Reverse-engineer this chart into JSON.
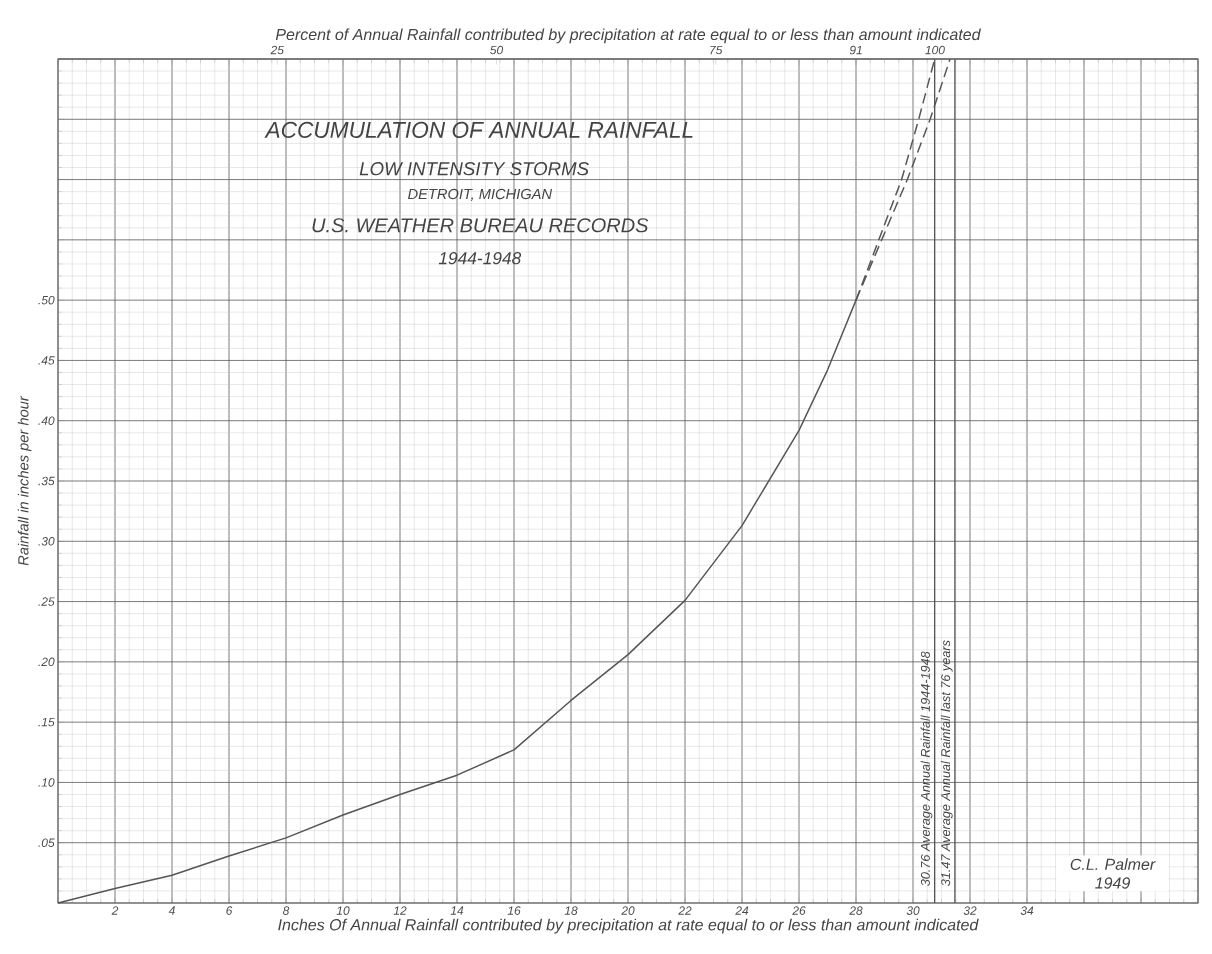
{
  "chart_data": {
    "type": "line",
    "title": "ACCUMULATION OF ANNUAL RAINFALL",
    "subtitle": "LOW INTENSITY STORMS",
    "xlabel": "Inches Of Annual Rainfall contributed by precipitation at rate equal to or less than amount indicated",
    "x2label": "Percent of Annual Rainfall contributed by precipitation at rate equal to or less than amount indicated",
    "ylabel": "Rainfall in inches per hour",
    "annotations": [
      "DETROIT, MICHIGAN",
      "U.S. WEATHER BUREAU RECORDS",
      "1944-1948",
      "C.L. Palmer 1949"
    ],
    "series": [
      {
        "color": "#555555",
        "line_style": "solid",
        "x": [
          0,
          2,
          4,
          6,
          8,
          10,
          12,
          14,
          16,
          18,
          20,
          22,
          24,
          26,
          27,
          28
        ],
        "values": [
          0,
          0.012,
          0.023,
          0.039,
          0.054,
          0.073,
          0.09,
          0.106,
          0.127,
          0.168,
          0.206,
          0.251,
          0.313,
          0.392,
          0.442,
          0.5
        ]
      },
      {
        "color": "#555555",
        "line_style": "dashed",
        "x": [
          28,
          28.8,
          29.6,
          30.2,
          30.76
        ],
        "values": [
          0.5,
          0.55,
          0.6,
          0.65,
          0.7
        ]
      },
      {
        "color": "#555555",
        "line_style": "dashed",
        "x": [
          28,
          28.9,
          29.8,
          30.6,
          31.3
        ],
        "values": [
          0.5,
          0.55,
          0.6,
          0.65,
          0.7
        ]
      }
    ],
    "ref_lines": [
      {
        "axis": "x",
        "value": 30.76,
        "label": "30.76 Average Annual Rainfall 1944-1948",
        "color": "#555555"
      },
      {
        "axis": "x",
        "value": 31.47,
        "label": "31.47 Average Annual Rainfall last 76 years",
        "color": "#555555"
      }
    ],
    "xlim": [
      0,
      40
    ],
    "xticks": [
      {
        "value": 0,
        "label": null
      },
      2,
      4,
      6,
      8,
      10,
      12,
      14,
      16,
      18,
      20,
      22,
      24,
      26,
      28,
      30,
      32,
      34,
      {
        "value": 36,
        "label": null
      },
      {
        "value": 38,
        "label": null
      },
      {
        "value": 40,
        "label": null
      }
    ],
    "x2lim": [
      0,
      130
    ],
    "x2ticks": [
      25,
      50,
      75,
      91,
      100
    ],
    "ylim": [
      0,
      0.7
    ],
    "yticks": [
      {
        "value": 0,
        "label": null
      },
      {
        "value": 0.05,
        "label": ".05"
      },
      {
        "value": 0.1,
        "label": ".10"
      },
      {
        "value": 0.15,
        "label": ".15"
      },
      {
        "value": 0.2,
        "label": ".20"
      },
      {
        "value": 0.25,
        "label": ".25"
      },
      {
        "value": 0.3,
        "label": ".30"
      },
      {
        "value": 0.35,
        "label": ".35"
      },
      {
        "value": 0.4,
        "label": ".40"
      },
      {
        "value": 0.45,
        "label": ".45"
      },
      {
        "value": 0.5,
        "label": ".50"
      },
      {
        "value": 0.55,
        "label": null
      },
      {
        "value": 0.6,
        "label": null
      },
      {
        "value": 0.65,
        "label": null
      },
      {
        "value": 0.7,
        "label": null
      }
    ],
    "grid": true
  }
}
